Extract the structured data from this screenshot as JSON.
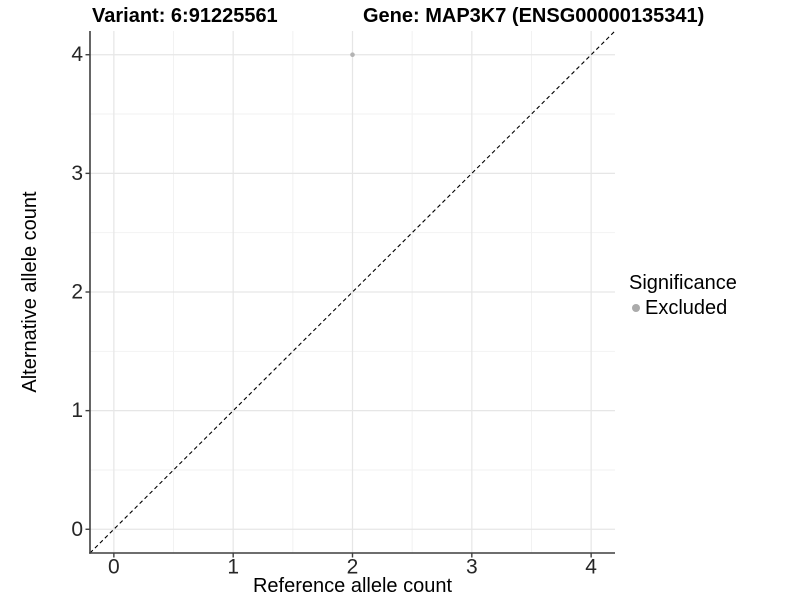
{
  "titles": {
    "variant": "Variant: 6:91225561",
    "gene": "Gene: MAP3K7 (ENSG00000135341)"
  },
  "legend": {
    "title": "Significance",
    "items": [
      {
        "label": "Excluded",
        "color": "#ABABAB"
      }
    ]
  },
  "colors": {
    "background": "#FFFFFF",
    "point": "#B3B3B3",
    "legend_dot": "#A9A9A9",
    "grid_major": "#E6E6E6",
    "grid_minor": "#F2F2F2",
    "axis_line": "#3F3F3F",
    "tick_mark": "#3F3F3F",
    "tick_label": "#262626",
    "reference_line": "#000000",
    "text": "#000000"
  },
  "chart_data": {
    "type": "scatter",
    "title": "Variant: 6:91225561    Gene: MAP3K7 (ENSG00000135341)",
    "xlabel": "Reference allele count",
    "ylabel": "Alternative allele count",
    "xlim": [
      -0.2,
      4.2
    ],
    "ylim": [
      -0.2,
      4.2
    ],
    "x_ticks": [
      0,
      1,
      2,
      3,
      4
    ],
    "y_ticks": [
      0,
      1,
      2,
      3,
      4
    ],
    "x_minor_ticks": [
      0.5,
      1.5,
      2.5,
      3.5
    ],
    "y_minor_ticks": [
      0.5,
      1.5,
      2.5,
      3.5
    ],
    "grid": "on",
    "legend_position": "right",
    "legend_title": "Significance",
    "series": [
      {
        "name": "Excluded",
        "color": "#B3B3B3",
        "point_radius": 2.3,
        "points": [
          {
            "x": 2,
            "y": 4
          }
        ]
      }
    ],
    "reference_line": {
      "type": "identity y=x",
      "style": "dashed",
      "color": "#000000"
    }
  }
}
